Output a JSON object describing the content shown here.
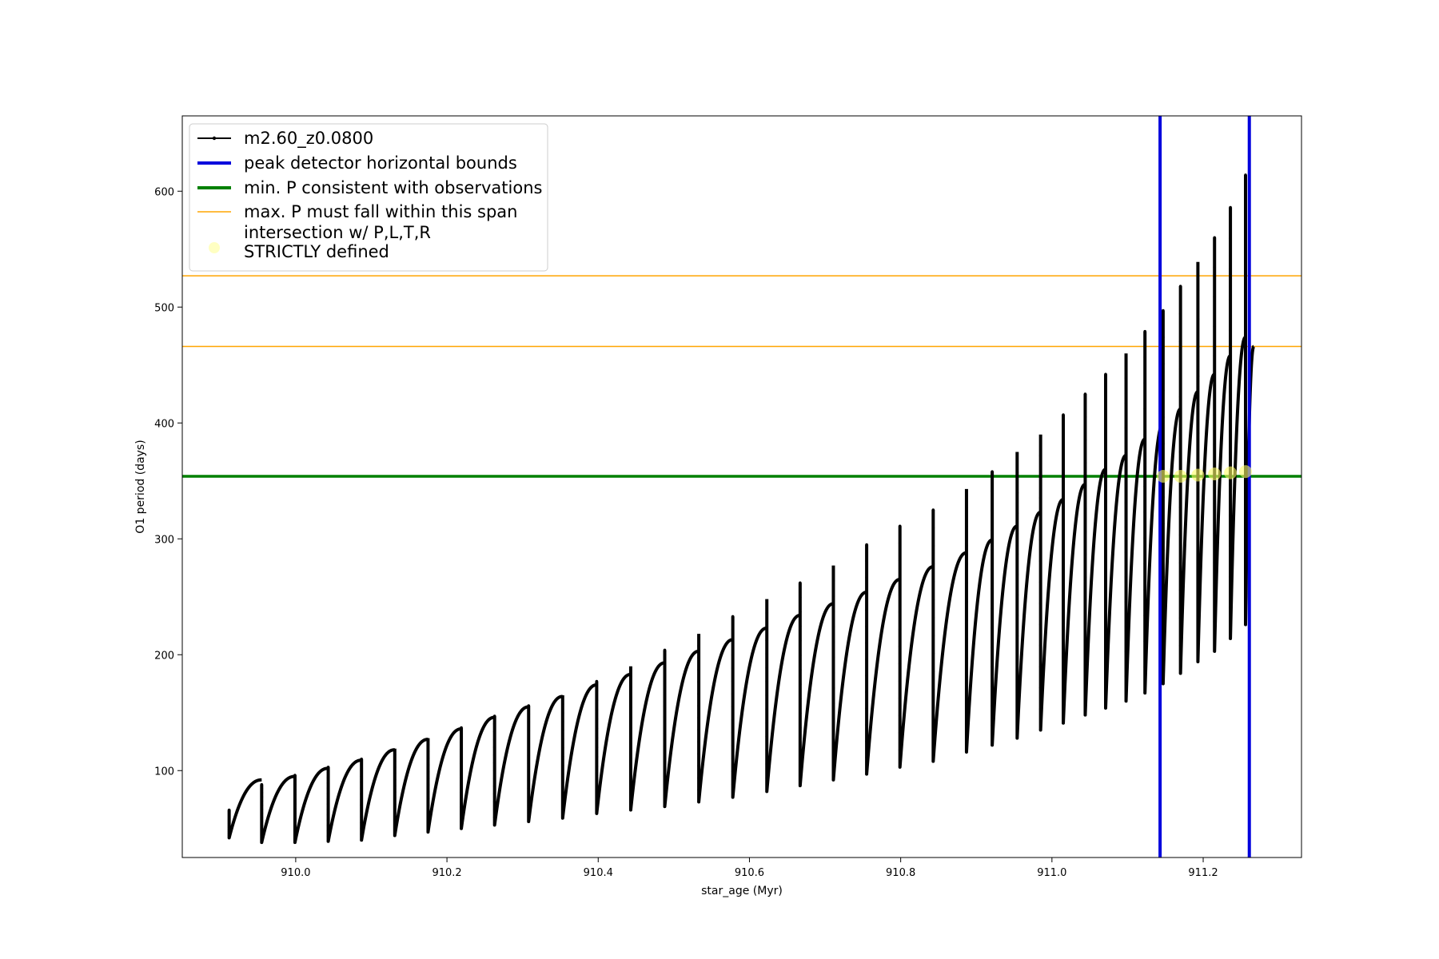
{
  "chart_data": {
    "type": "line",
    "title": "",
    "xlabel": "star_age (Myr)",
    "ylabel": "O1 period (days)",
    "xlim": [
      909.85,
      911.33
    ],
    "ylim": [
      25,
      665
    ],
    "xticks": [
      910.0,
      910.2,
      910.4,
      910.6,
      910.8,
      911.0,
      911.2
    ],
    "xtick_labels": [
      "910.0",
      "910.2",
      "910.4",
      "910.6",
      "910.8",
      "911.0",
      "911.2"
    ],
    "yticks": [
      100,
      200,
      300,
      400,
      500,
      600
    ],
    "ytick_labels": [
      "100",
      "200",
      "300",
      "400",
      "500",
      "600"
    ],
    "grid": false,
    "legend_position": "top-left",
    "series": [
      {
        "name": "m2.60_z0.0800",
        "kind": "line",
        "color": "#000000",
        "pulses": [
          {
            "start": 909.912,
            "end": 909.955,
            "min": 42,
            "max": 92,
            "spike": 66
          },
          {
            "start": 909.955,
            "end": 909.999,
            "min": 38,
            "max": 95,
            "spike": 88
          },
          {
            "start": 909.999,
            "end": 910.043,
            "min": 38,
            "max": 102,
            "spike": 96
          },
          {
            "start": 910.043,
            "end": 910.087,
            "min": 39,
            "max": 109,
            "spike": 103
          },
          {
            "start": 910.087,
            "end": 910.131,
            "min": 40,
            "max": 118,
            "spike": 110
          },
          {
            "start": 910.131,
            "end": 910.175,
            "min": 44,
            "max": 127,
            "spike": 119
          },
          {
            "start": 910.175,
            "end": 910.219,
            "min": 47,
            "max": 136,
            "spike": 128
          },
          {
            "start": 910.219,
            "end": 910.263,
            "min": 50,
            "max": 146,
            "spike": 137
          },
          {
            "start": 910.263,
            "end": 910.308,
            "min": 53,
            "max": 155,
            "spike": 147
          },
          {
            "start": 910.308,
            "end": 910.353,
            "min": 56,
            "max": 164,
            "spike": 156
          },
          {
            "start": 910.353,
            "end": 910.398,
            "min": 59,
            "max": 174,
            "spike": 165
          },
          {
            "start": 910.398,
            "end": 910.443,
            "min": 63,
            "max": 183,
            "spike": 177
          },
          {
            "start": 910.443,
            "end": 910.488,
            "min": 66,
            "max": 193,
            "spike": 190
          },
          {
            "start": 910.488,
            "end": 910.533,
            "min": 69,
            "max": 203,
            "spike": 204
          },
          {
            "start": 910.533,
            "end": 910.578,
            "min": 73,
            "max": 213,
            "spike": 218
          },
          {
            "start": 910.578,
            "end": 910.623,
            "min": 77,
            "max": 223,
            "spike": 233
          },
          {
            "start": 910.623,
            "end": 910.667,
            "min": 82,
            "max": 234,
            "spike": 248
          },
          {
            "start": 910.667,
            "end": 910.711,
            "min": 87,
            "max": 244,
            "spike": 262
          },
          {
            "start": 910.711,
            "end": 910.755,
            "min": 92,
            "max": 254,
            "spike": 277
          },
          {
            "start": 910.755,
            "end": 910.799,
            "min": 97,
            "max": 265,
            "spike": 295
          },
          {
            "start": 910.799,
            "end": 910.843,
            "min": 103,
            "max": 276,
            "spike": 311
          },
          {
            "start": 910.843,
            "end": 910.887,
            "min": 108,
            "max": 288,
            "spike": 325
          },
          {
            "start": 910.887,
            "end": 910.921,
            "min": 116,
            "max": 299,
            "spike": 343
          },
          {
            "start": 910.921,
            "end": 910.954,
            "min": 122,
            "max": 311,
            "spike": 358
          },
          {
            "start": 910.954,
            "end": 910.985,
            "min": 128,
            "max": 323,
            "spike": 375
          },
          {
            "start": 910.985,
            "end": 911.015,
            "min": 135,
            "max": 334,
            "spike": 390
          },
          {
            "start": 911.015,
            "end": 911.044,
            "min": 141,
            "max": 347,
            "spike": 407
          },
          {
            "start": 911.044,
            "end": 911.071,
            "min": 148,
            "max": 360,
            "spike": 425
          },
          {
            "start": 911.071,
            "end": 911.098,
            "min": 154,
            "max": 372,
            "spike": 442
          },
          {
            "start": 911.098,
            "end": 911.123,
            "min": 160,
            "max": 386,
            "spike": 460
          },
          {
            "start": 911.123,
            "end": 911.147,
            "min": 167,
            "max": 399,
            "spike": 479
          },
          {
            "start": 911.147,
            "end": 911.17,
            "min": 175,
            "max": 412,
            "spike": 497
          },
          {
            "start": 911.17,
            "end": 911.193,
            "min": 184,
            "max": 427,
            "spike": 518
          },
          {
            "start": 911.193,
            "end": 911.215,
            "min": 194,
            "max": 442,
            "spike": 539
          },
          {
            "start": 911.215,
            "end": 911.236,
            "min": 203,
            "max": 458,
            "spike": 560
          },
          {
            "start": 911.236,
            "end": 911.256,
            "min": 214,
            "max": 474,
            "spike": 586
          },
          {
            "start": 911.256,
            "end": 911.267,
            "min": 226,
            "max": 466,
            "spike": 614
          }
        ]
      },
      {
        "name": "peak detector horizontal bounds",
        "kind": "vline",
        "color": "#0000dd",
        "x": [
          911.143,
          911.261
        ]
      },
      {
        "name": "min. P consistent with observations",
        "kind": "hline",
        "color": "#008000",
        "y": [
          354
        ]
      },
      {
        "name": "max. P must fall within this span",
        "kind": "hline",
        "color": "#ffa500",
        "y": [
          466,
          527
        ]
      },
      {
        "name": "intersection w/ P,L,T,R\nSTRICTLY defined",
        "kind": "scatter",
        "color": "#ffff66",
        "x": [
          911.147,
          911.17,
          911.193,
          911.215,
          911.236,
          911.256
        ],
        "y": [
          354,
          354,
          355,
          356,
          357,
          358
        ]
      }
    ]
  }
}
